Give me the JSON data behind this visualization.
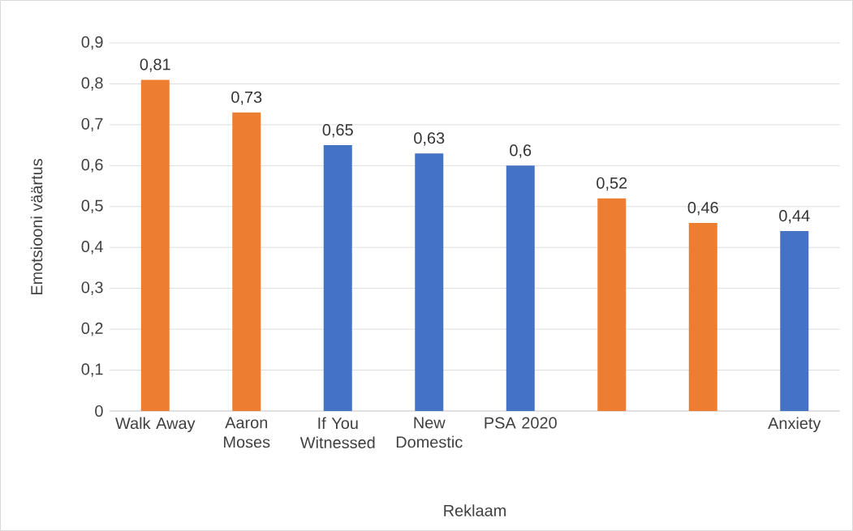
{
  "chart_data": {
    "type": "bar",
    "xlabel": "Reklaam",
    "ylabel": "Emotsiooni väärtus",
    "categories": [
      "Walk Away",
      "Aaron Moses",
      "If You Witnessed",
      "New Domestic",
      "PSA 2020",
      null,
      null,
      "Anxiety"
    ],
    "values": [
      0.81,
      0.73,
      0.65,
      0.63,
      0.6,
      0.52,
      0.46,
      0.44
    ],
    "colors": [
      "#ed7d31",
      "#ed7d31",
      "#4472c4",
      "#4472c4",
      "#4472c4",
      "#ed7d31",
      "#ed7d31",
      "#4472c4"
    ],
    "value_labels": [
      "0,81",
      "0,73",
      "0,65",
      "0,63",
      "0,6",
      "0,52",
      "0,46",
      "0,44"
    ],
    "ylim": [
      0,
      0.9
    ],
    "yticks": [
      0,
      {
        "value": 0.1,
        "label": "0,1"
      },
      {
        "value": 0.2,
        "label": "0,2"
      },
      {
        "value": 0.3,
        "label": "0,3"
      },
      {
        "value": 0.4,
        "label": "0,4"
      },
      {
        "value": 0.5,
        "label": "0,5"
      },
      {
        "value": 0.6,
        "label": "0,6"
      },
      {
        "value": 0.7,
        "label": "0,7"
      },
      {
        "value": 0.8,
        "label": "0,8"
      },
      {
        "value": 0.9,
        "label": "0,9"
      }
    ],
    "grid": "y"
  }
}
